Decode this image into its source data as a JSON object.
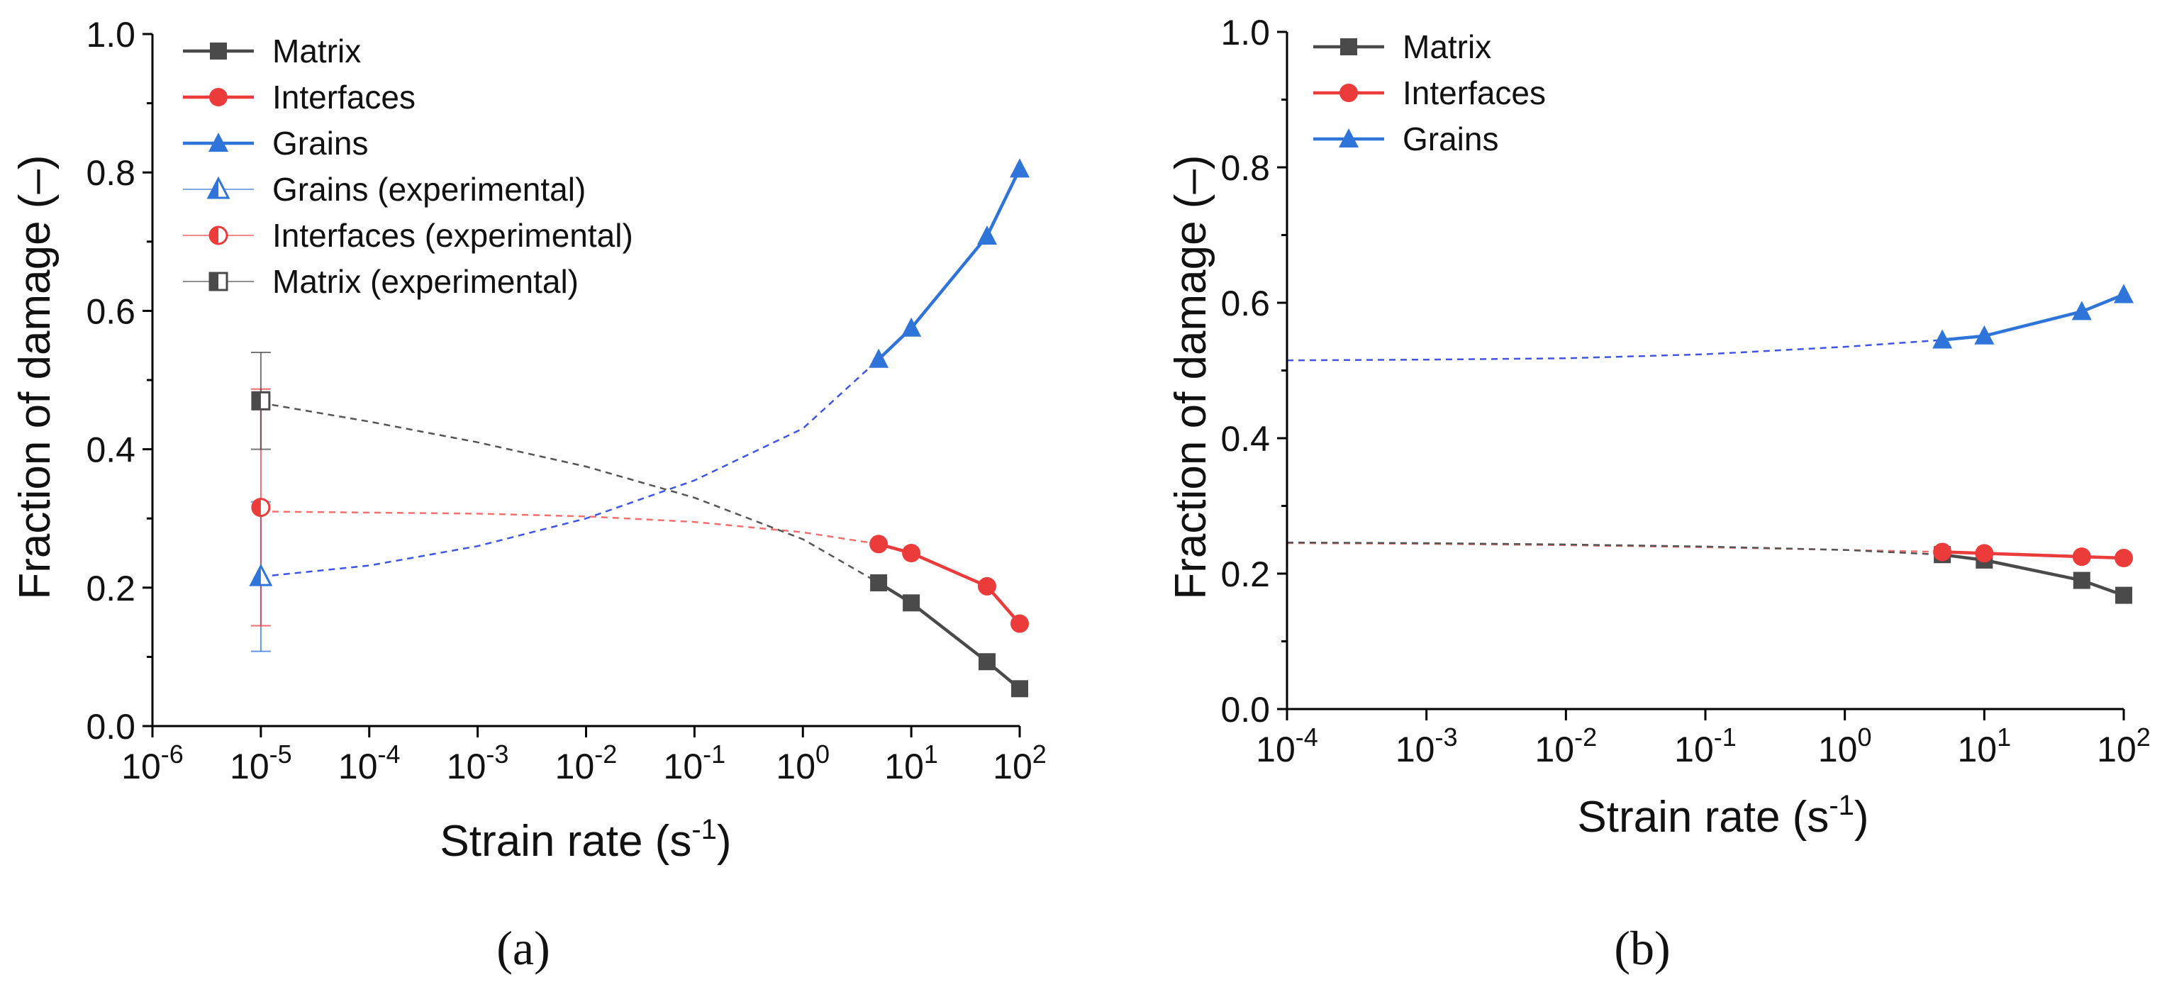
{
  "colors": {
    "matrix": "#4a4a4a",
    "interfaces": "#ec3b3b",
    "grains": "#2f74d8",
    "matrix_fit": "#555555",
    "interfaces_fit": "#f07070",
    "grains_fit": "#3e56e8"
  },
  "chart_data": [
    {
      "panel": "(a)",
      "type": "line",
      "xscale": "log",
      "xlabel": "Strain rate (s-1)",
      "ylabel": "Fraction of damage (–)",
      "xlim": [
        1e-06,
        100
      ],
      "ylim": [
        0.0,
        1.0
      ],
      "xticks": [
        {
          "base": "10",
          "exp": "-6",
          "value": 1e-06
        },
        {
          "base": "10",
          "exp": "-5",
          "value": 1e-05
        },
        {
          "base": "10",
          "exp": "-4",
          "value": 0.0001
        },
        {
          "base": "10",
          "exp": "-3",
          "value": 0.001
        },
        {
          "base": "10",
          "exp": "-2",
          "value": 0.01
        },
        {
          "base": "10",
          "exp": "-1",
          "value": 0.1
        },
        {
          "base": "10",
          "exp": "0",
          "value": 1
        },
        {
          "base": "10",
          "exp": "1",
          "value": 10
        },
        {
          "base": "10",
          "exp": "2",
          "value": 100
        }
      ],
      "yticks": [
        "0.0",
        "0.2",
        "0.4",
        "0.6",
        "0.8",
        "1.0"
      ],
      "legend_position": "top-left",
      "series": [
        {
          "name": "Matrix",
          "color_key": "matrix",
          "marker": "square",
          "x": [
            5,
            10,
            50,
            100
          ],
          "y": [
            0.207,
            0.178,
            0.093,
            0.054
          ]
        },
        {
          "name": "Interfaces",
          "color_key": "interfaces",
          "marker": "circle",
          "x": [
            5,
            10,
            50,
            100
          ],
          "y": [
            0.263,
            0.25,
            0.202,
            0.148
          ]
        },
        {
          "name": "Grains",
          "color_key": "grains",
          "marker": "triangle",
          "x": [
            5,
            10,
            50,
            100
          ],
          "y": [
            0.53,
            0.575,
            0.708,
            0.805
          ]
        },
        {
          "name": "Grains (experimental)",
          "color_key": "grains",
          "marker": "triangle-half",
          "x": [
            1e-05
          ],
          "y": [
            0.216
          ],
          "err_low": [
            0.108
          ],
          "err_high": [
            0.324
          ]
        },
        {
          "name": "Interfaces (experimental)",
          "color_key": "interfaces",
          "marker": "circle-half",
          "x": [
            1e-05
          ],
          "y": [
            0.316
          ],
          "err_low": [
            0.145
          ],
          "err_high": [
            0.487
          ]
        },
        {
          "name": "Matrix (experimental)",
          "color_key": "matrix",
          "marker": "square-half",
          "x": [
            1e-05
          ],
          "y": [
            0.47
          ],
          "err_low": [
            0.4
          ],
          "err_high": [
            0.54
          ]
        }
      ],
      "fit_lines": [
        {
          "name": "Grains fit",
          "color_key": "grains_fit",
          "x": [
            1e-05,
            0.0001,
            0.001,
            0.01,
            0.1,
            1,
            5
          ],
          "y": [
            0.216,
            0.232,
            0.26,
            0.3,
            0.355,
            0.43,
            0.53
          ]
        },
        {
          "name": "Interfaces fit",
          "color_key": "interfaces_fit",
          "x": [
            1e-05,
            0.001,
            0.01,
            0.1,
            1,
            5
          ],
          "y": [
            0.31,
            0.307,
            0.303,
            0.295,
            0.28,
            0.263
          ]
        },
        {
          "name": "Matrix fit",
          "color_key": "matrix_fit",
          "x": [
            1e-05,
            0.0001,
            0.001,
            0.01,
            0.1,
            1,
            5
          ],
          "y": [
            0.467,
            0.44,
            0.41,
            0.375,
            0.33,
            0.27,
            0.207
          ]
        }
      ]
    },
    {
      "panel": "(b)",
      "type": "line",
      "xscale": "log",
      "xlabel": "Strain rate (s-1)",
      "ylabel": "Fraction of damage (–)",
      "xlim": [
        0.0001,
        100
      ],
      "ylim": [
        0.0,
        1.0
      ],
      "xticks": [
        {
          "base": "10",
          "exp": "-4",
          "value": 0.0001
        },
        {
          "base": "10",
          "exp": "-3",
          "value": 0.001
        },
        {
          "base": "10",
          "exp": "-2",
          "value": 0.01
        },
        {
          "base": "10",
          "exp": "-1",
          "value": 0.1
        },
        {
          "base": "10",
          "exp": "0",
          "value": 1
        },
        {
          "base": "10",
          "exp": "1",
          "value": 10
        },
        {
          "base": "10",
          "exp": "2",
          "value": 100
        }
      ],
      "yticks": [
        "0.0",
        "0.2",
        "0.4",
        "0.6",
        "0.8",
        "1.0"
      ],
      "legend_position": "top-left",
      "series": [
        {
          "name": "Matrix",
          "color_key": "matrix",
          "marker": "square",
          "x": [
            5,
            10,
            50,
            100
          ],
          "y": [
            0.228,
            0.22,
            0.19,
            0.168
          ]
        },
        {
          "name": "Interfaces",
          "color_key": "interfaces",
          "marker": "circle",
          "x": [
            5,
            10,
            50,
            100
          ],
          "y": [
            0.232,
            0.23,
            0.225,
            0.223
          ]
        },
        {
          "name": "Grains",
          "color_key": "grains",
          "marker": "triangle",
          "x": [
            5,
            10,
            50,
            100
          ],
          "y": [
            0.545,
            0.551,
            0.587,
            0.612
          ]
        }
      ],
      "fit_lines": [
        {
          "name": "Grains fit",
          "color_key": "grains_fit",
          "x": [
            0.0001,
            0.001,
            0.01,
            0.1,
            1,
            5
          ],
          "y": [
            0.515,
            0.516,
            0.518,
            0.524,
            0.535,
            0.545
          ]
        },
        {
          "name": "Interfaces fit",
          "color_key": "interfaces_fit",
          "x": [
            0.0001,
            0.001,
            0.01,
            0.1,
            1,
            5
          ],
          "y": [
            0.245,
            0.244,
            0.242,
            0.239,
            0.235,
            0.232
          ]
        },
        {
          "name": "Matrix fit",
          "color_key": "matrix_fit",
          "x": [
            0.0001,
            0.001,
            0.01,
            0.1,
            1,
            5
          ],
          "y": [
            0.246,
            0.245,
            0.243,
            0.24,
            0.235,
            0.228
          ]
        }
      ]
    }
  ]
}
